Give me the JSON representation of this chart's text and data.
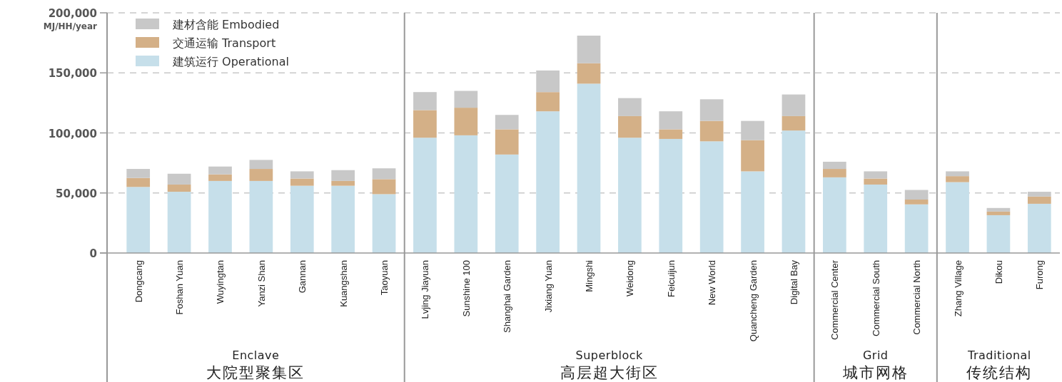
{
  "chart_data": {
    "type": "bar",
    "stacked": true,
    "ylabel": "MJ/HH/year",
    "categories": [
      "Dongcang",
      "Foshan Yuan",
      "Wuyingtan",
      "Yanzi Shan",
      "Gannan",
      "Kuangshan",
      "Taoyuan",
      "Lvjing Jiayuan",
      "Sunshine 100",
      "Shanghai Garden",
      "Jixiang Yuan",
      "Mingshi",
      "Weidong",
      "Feicuijun",
      "New World",
      "Quancheng Garden",
      "Digital Bay",
      "Commercial Center",
      "Commercial South",
      "Commercial North",
      "Zhang Village",
      "Dikou",
      "Furong"
    ],
    "series": [
      {
        "name": "建筑运行 Operational",
        "color": "#c6dfea",
        "values": [
          55000,
          51000,
          60000,
          60000,
          56000,
          56000,
          49000,
          96000,
          98000,
          82000,
          118000,
          141000,
          96000,
          95000,
          93000,
          68000,
          102000,
          63000,
          57000,
          40500,
          59000,
          31500,
          41000
        ]
      },
      {
        "name": "交通运输 Transport",
        "color": "#d4b087",
        "values": [
          7500,
          6000,
          5500,
          10000,
          6000,
          4000,
          12500,
          23000,
          23000,
          21000,
          16000,
          17000,
          18000,
          8000,
          17000,
          26000,
          12000,
          7000,
          5000,
          4000,
          5000,
          3000,
          6000
        ]
      },
      {
        "name": "建材含能 Embodied",
        "color": "#c8c8c8",
        "values": [
          7500,
          9000,
          6500,
          7500,
          6000,
          9000,
          9000,
          15000,
          14000,
          12000,
          18000,
          23000,
          15000,
          15000,
          18000,
          16000,
          18000,
          6000,
          6000,
          8000,
          4000,
          3000,
          4000
        ]
      }
    ],
    "ylim": [
      0,
      200000
    ],
    "yticks": [
      0,
      {
        "value": 50000,
        "label": "50,000"
      },
      {
        "value": 100000,
        "label": "100,000"
      },
      {
        "value": 150000,
        "label": "150,000"
      },
      {
        "value": 200000,
        "label": "200,000"
      }
    ],
    "grid": "y",
    "legend": "top left",
    "annotations": [
      "Enclave",
      "大院型聚集区",
      "Superblock",
      "高层超大街区",
      "Grid",
      "城市网格",
      "Traditional",
      "传统结构"
    ]
  }
}
